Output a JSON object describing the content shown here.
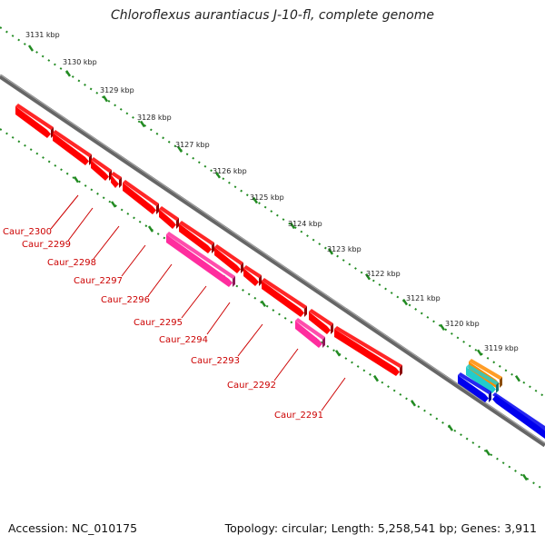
{
  "title": "Chloroflexus aurantiacus J-10-fl, complete genome",
  "footer": {
    "accession": "Accession: NC_010175",
    "summary": "Topology: circular; Length: 5,258,541 bp; Genes: 3,911"
  },
  "scale": {
    "tick_labels": [
      "3131 kbp",
      "3130 kbp",
      "3129 kbp",
      "3128 kbp",
      "3127 kbp",
      "3126 kbp",
      "3125 kbp",
      "3124 kbp",
      "3123 kbp",
      "3122 kbp",
      "3121 kbp",
      "3120 kbp",
      "3119 kbp"
    ]
  },
  "gene_labels": [
    "Caur_2300",
    "Caur_2299",
    "Caur_2298",
    "Caur_2297",
    "Caur_2296",
    "Caur_2295",
    "Caur_2294",
    "Caur_2293",
    "Caur_2292",
    "Caur_2291"
  ],
  "colors": {
    "gene": "#ff0000",
    "gene_side": "#990000",
    "pink_feature": "#ff2d9e",
    "orange_feature": "#ff8c00",
    "cyan_feature": "#22cccc",
    "blue_feature": "#0000ee",
    "backbone": "#777777",
    "ticks": "#228b22",
    "label": "#cc0000"
  }
}
